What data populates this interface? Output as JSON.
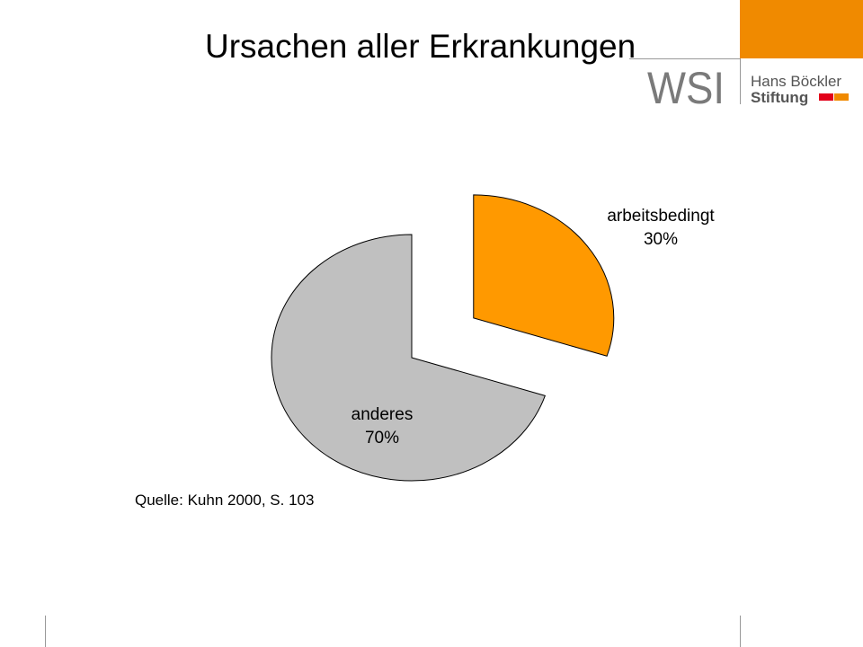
{
  "chart_data": {
    "type": "pie",
    "title": "Ursachen aller Erkrankungen",
    "categories": [
      "arbeitsbedingt",
      "anderes"
    ],
    "values": [
      30,
      70
    ],
    "value_labels": [
      "30%",
      "70%"
    ],
    "colors": [
      "#ff9900",
      "#c0c0c0"
    ],
    "source": "Quelle: Kuhn 2000, S. 103"
  },
  "logo": {
    "mark": "WSI",
    "line1": "Hans Böckler",
    "line2": "Stiftung"
  }
}
